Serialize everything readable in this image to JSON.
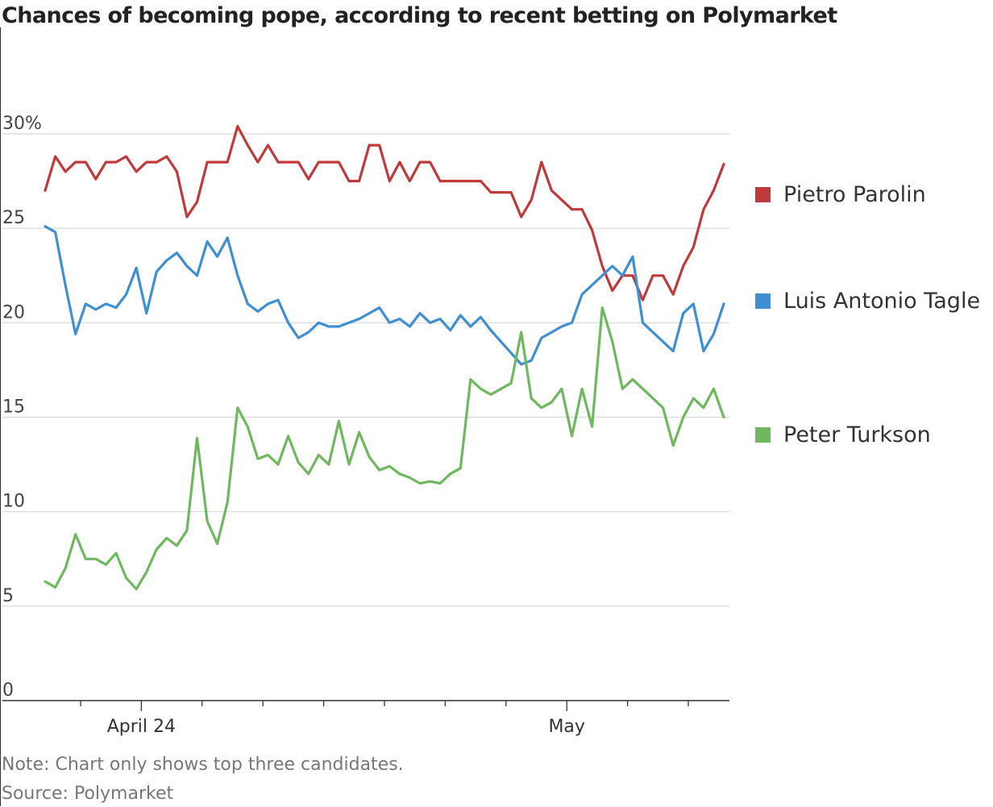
{
  "title": "Chances of becoming pope, according to recent betting on Polymarket",
  "note": "Note: Chart only shows top three candidates.",
  "source": "Source: Polymarket",
  "chart_data": {
    "type": "line",
    "title": "Chances of becoming pope, according to recent betting on Polymarket",
    "xlabel": "",
    "ylabel": "",
    "ylim": [
      0,
      30
    ],
    "y_ticks": [
      0,
      5,
      10,
      15,
      20,
      25,
      30
    ],
    "y_tick_labels": [
      "0",
      "5",
      "10",
      "15",
      "20",
      "25",
      "30%"
    ],
    "x_tick_labels": [
      "April 24",
      "May"
    ],
    "xlim": [
      "2025-04-22",
      "2025-05-02"
    ],
    "grid": true,
    "legend_placement": "right",
    "x": [
      "2025-04-22T10",
      "2025-04-22T14",
      "2025-04-22T18",
      "2025-04-22T22",
      "2025-04-23T02",
      "2025-04-23T06",
      "2025-04-23T10",
      "2025-04-23T14",
      "2025-04-23T18",
      "2025-04-23T22",
      "2025-04-24T02",
      "2025-04-24T06",
      "2025-04-24T10",
      "2025-04-24T14",
      "2025-04-24T18",
      "2025-04-24T22",
      "2025-04-25T02",
      "2025-04-25T06",
      "2025-04-25T10",
      "2025-04-25T14",
      "2025-04-25T18",
      "2025-04-25T22",
      "2025-04-26T02",
      "2025-04-26T06",
      "2025-04-26T10",
      "2025-04-26T14",
      "2025-04-26T18",
      "2025-04-26T22",
      "2025-04-27T02",
      "2025-04-27T06",
      "2025-04-27T10",
      "2025-04-27T14",
      "2025-04-27T18",
      "2025-04-27T22",
      "2025-04-28T02",
      "2025-04-28T06",
      "2025-04-28T10",
      "2025-04-28T14",
      "2025-04-28T18",
      "2025-04-28T22",
      "2025-04-29T02",
      "2025-04-29T06",
      "2025-04-29T10",
      "2025-04-29T14",
      "2025-04-29T18",
      "2025-04-29T22",
      "2025-04-30T02",
      "2025-04-30T06",
      "2025-04-30T10",
      "2025-04-30T14",
      "2025-04-30T18",
      "2025-04-30T22",
      "2025-05-01T02",
      "2025-05-01T06",
      "2025-05-01T10",
      "2025-05-01T14",
      "2025-05-01T18",
      "2025-05-01T22",
      "2025-05-02T02",
      "2025-05-02T06",
      "2025-05-02T10",
      "2025-05-02T14",
      "2025-05-02T18",
      "2025-05-02T22",
      "2025-05-03T02",
      "2025-05-03T06",
      "2025-05-03T10",
      "2025-05-03T14"
    ],
    "series": [
      {
        "name": "Pietro Parolin",
        "color": "#c0393b",
        "values": [
          27.0,
          28.8,
          28.0,
          28.5,
          28.5,
          27.6,
          28.5,
          28.5,
          28.8,
          28.0,
          28.5,
          28.5,
          28.8,
          28.0,
          25.6,
          26.4,
          28.5,
          28.5,
          28.5,
          30.4,
          29.4,
          28.5,
          29.4,
          28.5,
          28.5,
          28.5,
          27.6,
          28.5,
          28.5,
          28.5,
          27.5,
          27.5,
          29.4,
          29.4,
          27.5,
          28.5,
          27.5,
          28.5,
          28.5,
          27.5,
          27.5,
          27.5,
          27.5,
          27.5,
          26.9,
          26.9,
          26.9,
          25.6,
          26.5,
          28.5,
          27.0,
          26.5,
          26.0,
          26.0,
          24.9,
          23.0,
          21.7,
          22.5,
          22.5,
          21.2,
          22.5,
          22.5,
          21.5,
          23.0,
          24.0,
          26.0,
          27.0,
          28.4
        ]
      },
      {
        "name": "Luis Antonio Tagle",
        "color": "#3f8fd2",
        "values": [
          25.1,
          24.8,
          22.0,
          19.4,
          21.0,
          20.7,
          21.0,
          20.8,
          21.5,
          22.9,
          20.5,
          22.7,
          23.3,
          23.7,
          23.0,
          22.5,
          24.3,
          23.5,
          24.5,
          22.5,
          21.0,
          20.6,
          21.0,
          21.2,
          20.0,
          19.2,
          19.5,
          20.0,
          19.8,
          19.8,
          20.0,
          20.2,
          20.5,
          20.8,
          20.0,
          20.2,
          19.8,
          20.5,
          20.0,
          20.2,
          19.6,
          20.4,
          19.8,
          20.3,
          19.6,
          19.0,
          18.4,
          17.8,
          18.0,
          19.2,
          19.5,
          19.8,
          20.0,
          21.5,
          22.0,
          22.5,
          23.0,
          22.5,
          23.5,
          20.0,
          19.5,
          19.0,
          18.5,
          20.5,
          21.0,
          18.5,
          19.4,
          21.0
        ]
      },
      {
        "name": "Peter Turkson",
        "color": "#6fb85f",
        "values": [
          6.3,
          6.0,
          7.0,
          8.8,
          7.5,
          7.5,
          7.2,
          7.8,
          6.5,
          5.9,
          6.8,
          8.0,
          8.6,
          8.2,
          9.0,
          13.9,
          9.5,
          8.3,
          10.5,
          15.5,
          14.5,
          12.8,
          13.0,
          12.5,
          14.0,
          12.6,
          12.0,
          13.0,
          12.5,
          14.8,
          12.5,
          14.2,
          12.9,
          12.2,
          12.4,
          12.0,
          11.8,
          11.5,
          11.6,
          11.5,
          12.0,
          12.3,
          17.0,
          16.5,
          16.2,
          16.5,
          16.8,
          19.5,
          16.0,
          15.5,
          15.8,
          16.5,
          14.0,
          16.5,
          14.5,
          20.8,
          19.0,
          16.5,
          17.0,
          16.5,
          16.0,
          15.5,
          13.5,
          15.0,
          16.0,
          15.5,
          16.5,
          15.0
        ]
      }
    ]
  }
}
